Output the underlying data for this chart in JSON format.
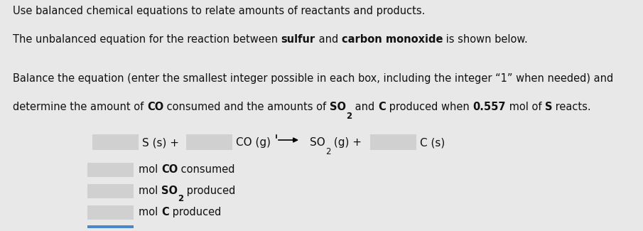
{
  "bg_color": "#e8e8e8",
  "box_color": "#d0d0d0",
  "text_color": "#111111",
  "blue_bar_color": "#4a86c8",
  "line1": "Use balanced chemical equations to relate amounts of reactants and products.",
  "line2_parts": [
    [
      "The unbalanced equation for the reaction between ",
      false
    ],
    [
      "sulfur",
      true
    ],
    [
      " and ",
      false
    ],
    [
      "carbon monoxide",
      true
    ],
    [
      " is shown below.",
      false
    ]
  ],
  "line3a": "Balance the equation (enter the smallest integer possible in each box, including the integer “1” when needed) and",
  "line3b_parts": [
    [
      "determine the amount of ",
      false,
      false
    ],
    [
      "CO",
      true,
      false
    ],
    [
      " consumed and the amounts of ",
      false,
      false
    ],
    [
      "SO",
      true,
      false
    ],
    [
      "2",
      true,
      true
    ],
    [
      " and ",
      false,
      false
    ],
    [
      "C",
      true,
      false
    ],
    [
      " produced when ",
      false,
      false
    ],
    [
      "0.557",
      true,
      false
    ],
    [
      " mol of ",
      false,
      false
    ],
    [
      "S",
      true,
      false
    ],
    [
      " reacts.",
      false,
      false
    ]
  ],
  "fontsize_text": 10.5,
  "fontsize_eq": 11.0,
  "fontsize_small": 8.5
}
